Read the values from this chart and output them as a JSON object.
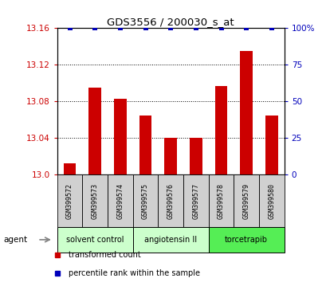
{
  "title": "GDS3556 / 200030_s_at",
  "samples": [
    "GSM399572",
    "GSM399573",
    "GSM399574",
    "GSM399575",
    "GSM399576",
    "GSM399577",
    "GSM399578",
    "GSM399579",
    "GSM399580"
  ],
  "transformed_counts": [
    13.013,
    13.095,
    13.083,
    13.065,
    13.04,
    13.04,
    13.097,
    13.135,
    13.065
  ],
  "percentile_ranks": [
    100,
    100,
    100,
    100,
    100,
    100,
    100,
    100,
    100
  ],
  "ylim_left": [
    13.0,
    13.16
  ],
  "ylim_right": [
    0,
    100
  ],
  "yticks_left": [
    13.0,
    13.04,
    13.08,
    13.12,
    13.16
  ],
  "yticks_right": [
    0,
    25,
    50,
    75,
    100
  ],
  "bar_color": "#cc0000",
  "dot_color": "#0000bb",
  "groups": [
    {
      "label": "solvent control",
      "indices": [
        0,
        1,
        2
      ],
      "color": "#ccffcc"
    },
    {
      "label": "angiotensin II",
      "indices": [
        3,
        4,
        5
      ],
      "color": "#ccffcc"
    },
    {
      "label": "torcetrapib",
      "indices": [
        6,
        7,
        8
      ],
      "color": "#55ee55"
    }
  ],
  "legend_bar_label": "transformed count",
  "legend_dot_label": "percentile rank within the sample",
  "agent_label": "agent",
  "left_tick_color": "#cc0000",
  "right_tick_color": "#0000bb",
  "sample_bg_color": "#d0d0d0"
}
